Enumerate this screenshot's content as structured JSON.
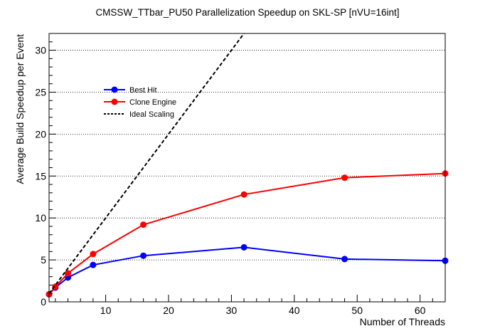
{
  "chart_data": {
    "type": "line",
    "title": "CMSSW_TTbar_PU50 Parallelization Speedup on SKL-SP [nVU=16int]",
    "xlabel": "Number of Threads",
    "ylabel": "Average Build Speedup per Event",
    "xlim": [
      1,
      64
    ],
    "ylim": [
      0,
      32
    ],
    "xticks": [
      10,
      20,
      30,
      40,
      50,
      60
    ],
    "yticks": [
      0,
      5,
      10,
      15,
      20,
      25,
      30
    ],
    "grid": "horizontal-dotted",
    "legend_position": "top-left",
    "series": [
      {
        "name": "Best Hit",
        "color": "#0000ff",
        "marker": "circle",
        "line": "solid",
        "x": [
          1,
          2,
          4,
          8,
          16,
          32,
          48,
          64
        ],
        "y": [
          0.9,
          1.7,
          2.9,
          4.4,
          5.5,
          6.5,
          5.1,
          4.9
        ]
      },
      {
        "name": "Clone Engine",
        "color": "#ff0000",
        "marker": "circle",
        "line": "solid",
        "x": [
          1,
          2,
          4,
          8,
          16,
          32,
          48,
          64
        ],
        "y": [
          0.9,
          1.8,
          3.4,
          5.7,
          9.2,
          12.8,
          14.8,
          15.3
        ]
      },
      {
        "name": "Ideal Scaling",
        "color": "#000000",
        "marker": "none",
        "line": "dashed",
        "x": [
          1,
          32
        ],
        "y": [
          1,
          32
        ]
      }
    ]
  }
}
